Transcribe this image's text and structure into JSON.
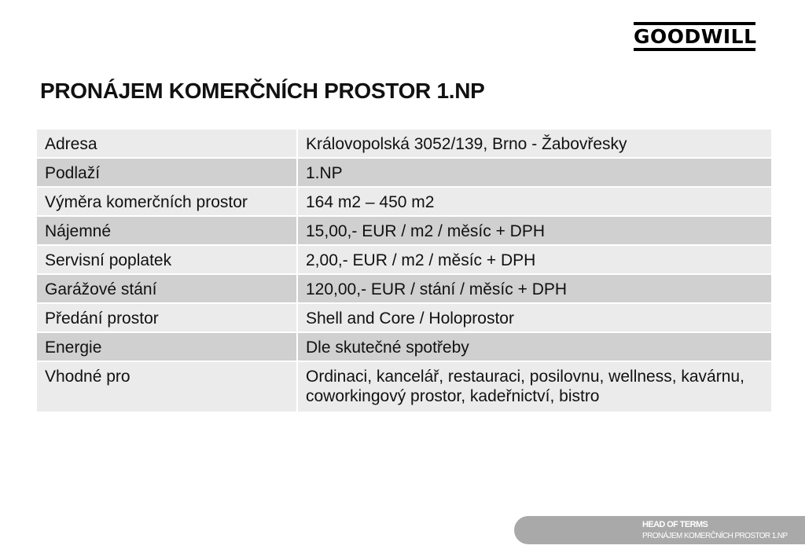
{
  "logo": "GOODWILL",
  "title": "PRONÁJEM KOMERČNÍCH PROSTOR 1.NP",
  "rows": [
    {
      "label": "Adresa",
      "value": "Královopolská 3052/139, Brno - Žabovřesky"
    },
    {
      "label": "Podlaží",
      "value": "1.NP"
    },
    {
      "label": "Výměra komerčních prostor",
      "value": "164 m2 – 450 m2"
    },
    {
      "label": "Nájemné",
      "value": "15,00,- EUR / m2 / měsíc + DPH"
    },
    {
      "label": "Servisní poplatek",
      "value": "2,00,- EUR / m2 / měsíc + DPH"
    },
    {
      "label": "Garážové stání",
      "value": "120,00,- EUR / stání / měsíc + DPH"
    },
    {
      "label": "Předání prostor",
      "value": "Shell and Core / Holoprostor"
    },
    {
      "label": "Energie",
      "value": "Dle skutečné spotřeby"
    },
    {
      "label": "Vhodné pro",
      "value": "Ordinaci, kancelář, restauraci, posilovnu, wellness, kavárnu, coworkingový prostor, kadeřnictví, bistro"
    }
  ],
  "footer": {
    "line1": "HEAD OF TERMS",
    "line2": "PRONÁJEM  KOMERČNÍCH PROSTOR 1.NP"
  }
}
